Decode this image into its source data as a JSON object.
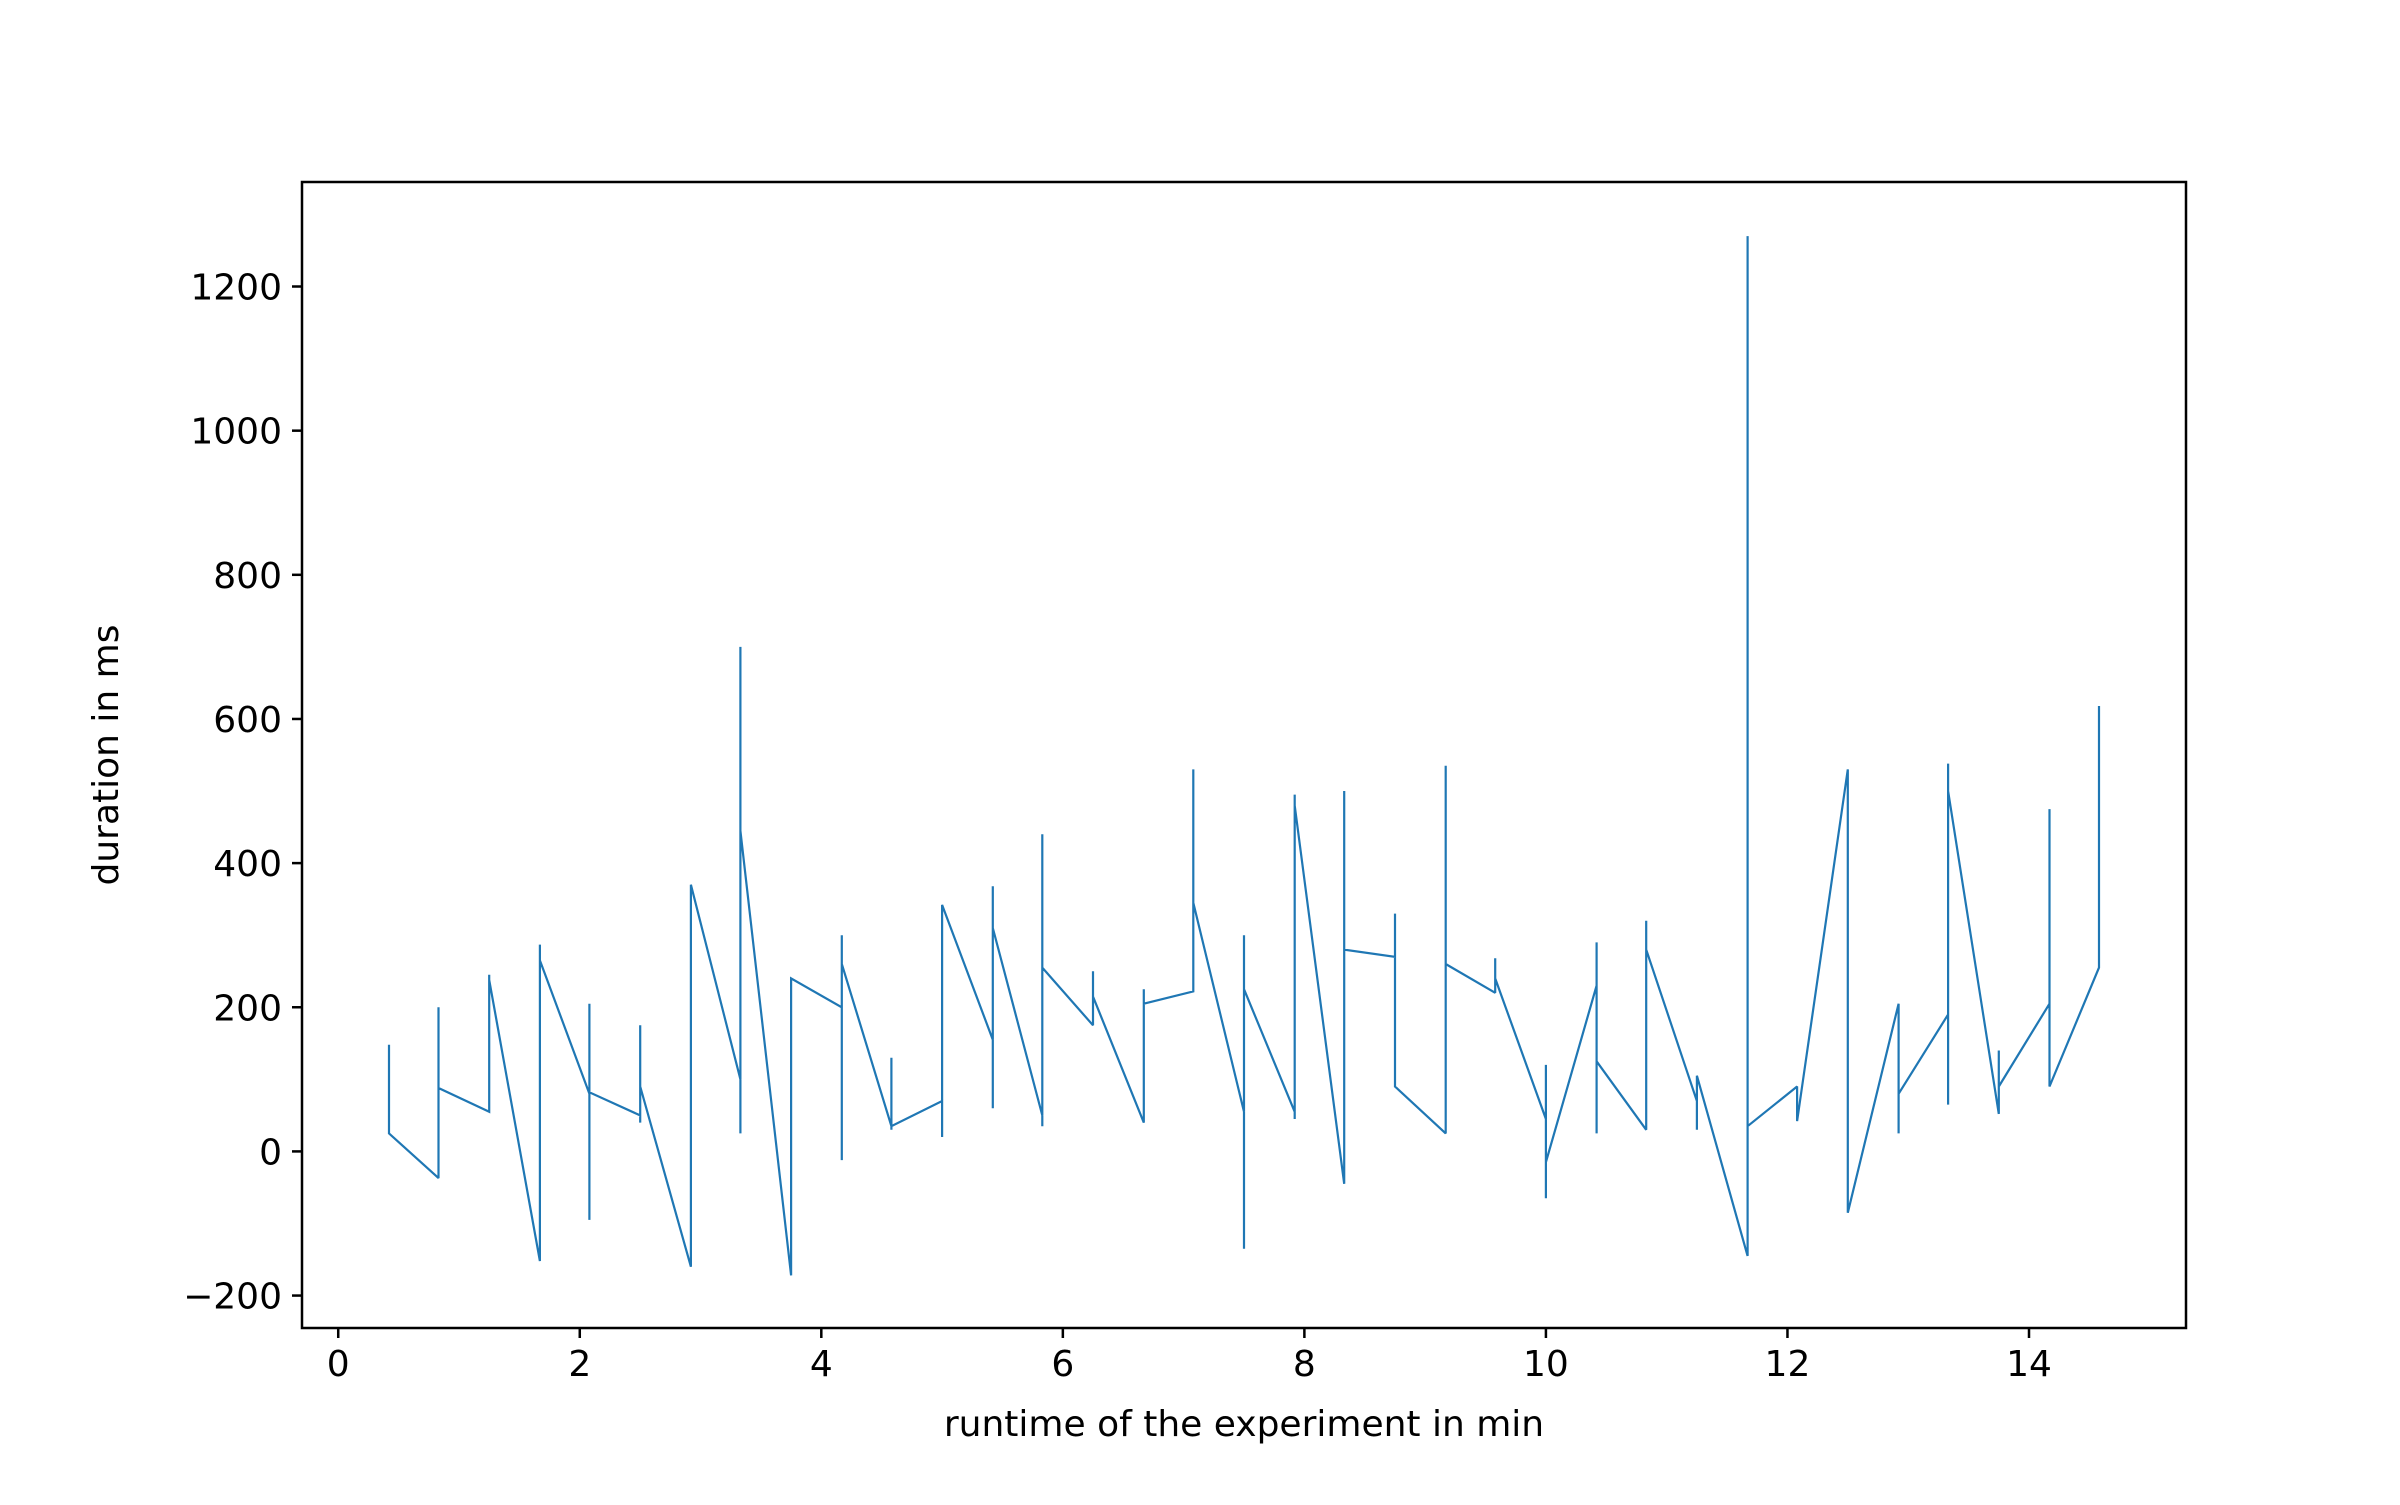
{
  "chart_data": {
    "type": "line",
    "title": "",
    "xlabel": "runtime of the experiment in min",
    "ylabel": "duration in ms",
    "xlim": [
      -0.3,
      15.3
    ],
    "ylim": [
      -245,
      1345
    ],
    "xticks": [
      0,
      2,
      4,
      6,
      8,
      10,
      12,
      14
    ],
    "yticks": [
      -200,
      0,
      200,
      400,
      600,
      800,
      1000,
      1200
    ],
    "grid": false,
    "legend": "none",
    "series_color": "#1f77b4",
    "series": [
      {
        "x": [
          0.42,
          0.42,
          0.42,
          0.42,
          0.42,
          0.42,
          0.83,
          0.83,
          0.83,
          0.83,
          0.83,
          0.83,
          1.25,
          1.25,
          1.25,
          1.67,
          1.67,
          1.67,
          1.67,
          1.67,
          1.67,
          2.08,
          2.08,
          2.08,
          2.08,
          2.08,
          2.08,
          2.5,
          2.5,
          2.5,
          2.5,
          2.5,
          2.92,
          2.92,
          2.92,
          2.92,
          2.92,
          3.33,
          3.33,
          3.33,
          3.33,
          3.33,
          3.33,
          3.75,
          3.75,
          3.75,
          3.75,
          4.17,
          4.17,
          4.17,
          4.17,
          4.17,
          4.58,
          4.58,
          4.58,
          4.58,
          5.0,
          5.0,
          5.0,
          5.0,
          5.42,
          5.42,
          5.42,
          5.42,
          5.42,
          5.83,
          5.83,
          5.83,
          5.83,
          6.25,
          6.25,
          6.25,
          6.25,
          6.67,
          6.67,
          6.67,
          6.67,
          7.08,
          7.08,
          7.08,
          7.5,
          7.5,
          7.5,
          7.5,
          7.5,
          7.92,
          7.92,
          7.92,
          7.92,
          8.33,
          8.33,
          8.33,
          8.33,
          8.75,
          8.75,
          8.75,
          9.17,
          9.17,
          9.17,
          9.17,
          9.58,
          9.58,
          9.58,
          10.0,
          10.0,
          10.0,
          10.0,
          10.42,
          10.42,
          10.42,
          10.42,
          10.83,
          10.83,
          10.83,
          10.83,
          11.25,
          11.25,
          11.25,
          11.67,
          11.67,
          11.67,
          11.67,
          11.67,
          12.08,
          12.08,
          12.08,
          12.5,
          12.5,
          12.5,
          12.92,
          12.92,
          12.92,
          12.92,
          13.33,
          13.33,
          13.33,
          13.33,
          13.75,
          13.75,
          13.75,
          14.17,
          14.17,
          14.17,
          14.58,
          14.58
        ],
        "y": [
          148,
          45,
          140,
          60,
          130,
          25,
          -37,
          200,
          50,
          190,
          30,
          88,
          55,
          245,
          238,
          -152,
          160,
          45,
          287,
          240,
          265,
          80,
          205,
          -95,
          110,
          60,
          82,
          50,
          175,
          40,
          155,
          90,
          -160,
          95,
          30,
          360,
          370,
          100,
          700,
          25,
          450,
          100,
          445,
          -172,
          235,
          20,
          240,
          200,
          280,
          -12,
          300,
          260,
          35,
          130,
          30,
          35,
          70,
          20,
          340,
          342,
          155,
          368,
          60,
          300,
          310,
          50,
          440,
          35,
          255,
          175,
          250,
          220,
          215,
          40,
          225,
          45,
          205,
          222,
          530,
          345,
          55,
          300,
          -135,
          105,
          225,
          55,
          495,
          45,
          480,
          -45,
          500,
          30,
          280,
          270,
          330,
          90,
          25,
          535,
          30,
          260,
          220,
          268,
          240,
          45,
          120,
          -65,
          -15,
          230,
          290,
          25,
          125,
          30,
          320,
          200,
          280,
          70,
          30,
          105,
          -145,
          310,
          270,
          1270,
          35,
          90,
          55,
          42,
          530,
          345,
          -85,
          205,
          25,
          75,
          80,
          190,
          65,
          538,
          500,
          52,
          140,
          90,
          205,
          475,
          90,
          255,
          618
        ]
      }
    ]
  }
}
